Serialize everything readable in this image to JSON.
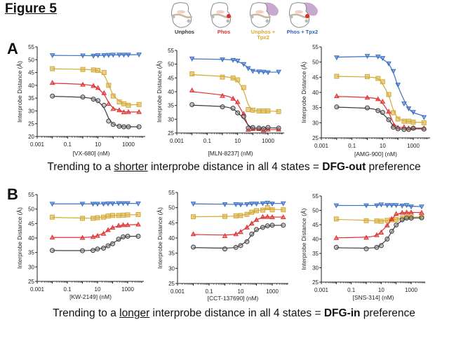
{
  "figure_title": "Figure 5",
  "panels": {
    "A": {
      "letter": "A",
      "caption_pre": "Trending to a ",
      "caption_u": "shorter",
      "caption_mid": " interprobe distance in all 4 states = ",
      "caption_b": "DFG-out",
      "caption_post": " preference"
    },
    "B": {
      "letter": "B",
      "caption_pre": "Trending to a ",
      "caption_u": "longer",
      "caption_mid": " interprobe distance in all 4 states = ",
      "caption_b": "DFG-in",
      "caption_post": " preference"
    }
  },
  "legend": [
    {
      "label": "Unphos",
      "label2": "",
      "color": "#333333",
      "icon": "kinase-structure-unphos"
    },
    {
      "label": "Phos",
      "label2": "",
      "color": "#e02b2b",
      "icon": "kinase-structure-phos"
    },
    {
      "label": "Unphos +",
      "label2": "Tpx2",
      "color": "#d9aa2e",
      "icon": "kinase-structure-unphos-tpx2"
    },
    {
      "label": "Phos + Tpx2",
      "label2": "",
      "color": "#2f5fb8",
      "icon": "kinase-structure-phos-tpx2"
    }
  ],
  "series_style": [
    {
      "state": "Phos + Tpx2",
      "color": "#3a6fc4",
      "marker": "triangle-down"
    },
    {
      "state": "Unphos + Tpx2",
      "color": "#d4a934",
      "marker": "square"
    },
    {
      "state": "Phos",
      "color": "#e03030",
      "marker": "triangle-up"
    },
    {
      "state": "Unphos",
      "color": "#3c3c3c",
      "marker": "circle"
    }
  ],
  "chart_data": [
    {
      "type": "scatter",
      "panel": "A",
      "xlabel": "[VX-680] (nM)",
      "ylabel": "Interprobe Distance (Å)",
      "xscale": "log",
      "xlim": [
        0.001,
        5000
      ],
      "xticks": [
        "0.001",
        "0.1",
        "10",
        "1000"
      ],
      "ylim": [
        20,
        55
      ],
      "yticks": [
        20,
        25,
        30,
        35,
        40,
        45,
        50,
        55
      ],
      "x": [
        0.01,
        1,
        5,
        10,
        25,
        50,
        100,
        250,
        500,
        1000,
        5000
      ],
      "series": [
        {
          "values": [
            51.7,
            51.6,
            51.5,
            51.7,
            51.7,
            51.8,
            51.9,
            51.9,
            51.9,
            51.9,
            52.0
          ]
        },
        {
          "values": [
            46.5,
            46.2,
            46.0,
            45.8,
            45.0,
            40.0,
            35.8,
            33.5,
            32.8,
            32.2,
            32.5
          ]
        },
        {
          "values": [
            41.0,
            40.3,
            39.8,
            39.0,
            37.0,
            32.8,
            30.8,
            30.3,
            29.5,
            29.6,
            29.6
          ]
        },
        {
          "values": [
            35.8,
            35.4,
            34.6,
            34.0,
            32.2,
            26.0,
            24.7,
            24.0,
            23.8,
            23.8,
            23.8
          ]
        }
      ]
    },
    {
      "type": "scatter",
      "panel": "A",
      "xlabel": "[MLN-8237] (nM)",
      "ylabel": "Interprobe Distance (Å)",
      "xscale": "log",
      "xlim": [
        0.001,
        5000
      ],
      "xticks": [
        "0.001",
        "0.1",
        "10",
        "1000"
      ],
      "ylim": [
        25,
        55
      ],
      "yticks": [
        25,
        30,
        35,
        40,
        45,
        50,
        55
      ],
      "x": [
        0.01,
        1,
        5,
        10,
        25,
        50,
        100,
        250,
        500,
        1000,
        5000
      ],
      "series": [
        {
          "values": [
            52.0,
            51.7,
            51.5,
            51.2,
            50.0,
            48.5,
            47.5,
            47.3,
            47.2,
            47.0,
            47.2
          ]
        },
        {
          "values": [
            46.5,
            45.3,
            45.0,
            44.3,
            41.5,
            33.5,
            33.3,
            33.0,
            33.0,
            33.0,
            32.8
          ]
        },
        {
          "values": [
            40.5,
            38.5,
            37.5,
            36.3,
            32.0,
            26.2,
            26.5,
            26.5,
            26.0,
            26.3,
            26.3
          ]
        },
        {
          "values": [
            35.3,
            34.5,
            34.0,
            32.3,
            31.0,
            26.8,
            27.0,
            26.8,
            26.6,
            27.0,
            26.8
          ]
        }
      ]
    },
    {
      "type": "scatter",
      "panel": "A",
      "xlabel": "[AMG-900] (nM)",
      "ylabel": "Interprobe Distance (Å)",
      "xscale": "log",
      "xlim": [
        0.001,
        5000
      ],
      "xticks": [
        "0.001",
        "0.1",
        "10",
        "1000"
      ],
      "ylim": [
        25,
        55
      ],
      "yticks": [
        25,
        30,
        35,
        40,
        45,
        50,
        55
      ],
      "x": [
        0.01,
        1,
        5,
        10,
        25,
        50,
        100,
        250,
        500,
        1000,
        5000
      ],
      "series": [
        {
          "values": [
            51.5,
            52.0,
            51.8,
            51.3,
            49.5,
            47.0,
            42.5,
            36.3,
            34.7,
            33.5,
            31.8
          ]
        },
        {
          "values": [
            45.3,
            45.2,
            44.6,
            43.5,
            39.3,
            33.3,
            31.2,
            30.5,
            30.5,
            30.2,
            30.0
          ]
        },
        {
          "values": [
            38.8,
            38.3,
            37.8,
            37.0,
            33.7,
            29.0,
            28.4,
            28.6,
            28.2,
            28.3,
            28.2
          ]
        },
        {
          "values": [
            35.2,
            34.9,
            34.0,
            33.4,
            31.0,
            28.5,
            28.0,
            27.8,
            27.8,
            28.2,
            27.9
          ]
        }
      ]
    },
    {
      "type": "scatter",
      "panel": "B",
      "xlabel": "[KW-2149] (nM)",
      "ylabel": "Interprobe Distance (Å)",
      "xscale": "log",
      "xlim": [
        0.001,
        5000
      ],
      "xticks": [
        "0.001",
        "0.1",
        "10",
        "1000"
      ],
      "ylim": [
        25,
        55
      ],
      "yticks": [
        25,
        30,
        35,
        40,
        45,
        50,
        55
      ],
      "x": [
        0.01,
        1,
        5,
        10,
        25,
        50,
        100,
        250,
        500,
        1000,
        5000
      ],
      "series": [
        {
          "values": [
            51.8,
            51.8,
            51.8,
            51.8,
            51.8,
            51.9,
            51.9,
            52.0,
            52.0,
            52.0,
            51.9
          ]
        },
        {
          "values": [
            47.2,
            46.8,
            46.8,
            47.0,
            47.2,
            47.6,
            47.8,
            47.8,
            47.9,
            48.0,
            48.1
          ]
        },
        {
          "values": [
            40.2,
            40.1,
            40.4,
            40.8,
            41.5,
            42.8,
            43.6,
            44.3,
            44.5,
            44.5,
            44.7
          ]
        },
        {
          "values": [
            35.7,
            35.6,
            35.7,
            36.2,
            36.5,
            37.3,
            38.0,
            39.6,
            40.4,
            40.6,
            40.6
          ]
        }
      ]
    },
    {
      "type": "scatter",
      "panel": "B",
      "xlabel": "[CCT-137690] (nM)",
      "ylabel": "Interprobe Distance (Å)",
      "xscale": "log",
      "xlim": [
        0.001,
        5000
      ],
      "xticks": [
        "0.001",
        "0.1",
        "10",
        "1000"
      ],
      "ylim": [
        25,
        55
      ],
      "yticks": [
        25,
        30,
        35,
        40,
        45,
        50,
        55
      ],
      "x": [
        0.01,
        1,
        5,
        10,
        25,
        50,
        100,
        250,
        500,
        1000,
        5000
      ],
      "series": [
        {
          "values": [
            51.3,
            51.1,
            51.1,
            51.0,
            51.1,
            51.3,
            51.3,
            51.4,
            51.6,
            51.3,
            51.4
          ]
        },
        {
          "values": [
            47.0,
            47.1,
            47.3,
            47.4,
            47.8,
            48.5,
            49.0,
            49.2,
            50.0,
            49.3,
            49.3
          ]
        },
        {
          "values": [
            41.3,
            40.7,
            41.3,
            42.0,
            43.5,
            44.8,
            46.0,
            47.0,
            47.0,
            46.9,
            46.9
          ]
        },
        {
          "values": [
            37.0,
            36.4,
            36.9,
            37.5,
            38.8,
            41.3,
            42.8,
            43.5,
            44.0,
            44.2,
            44.2
          ]
        }
      ]
    },
    {
      "type": "scatter",
      "panel": "B",
      "xlabel": "[SNS-314] (nM)",
      "ylabel": "Interprobe Distance (Å)",
      "xscale": "log",
      "xlim": [
        0.001,
        5000
      ],
      "xticks": [
        "0.001",
        "0.1",
        "10",
        "1000"
      ],
      "ylim": [
        25,
        55
      ],
      "yticks": [
        25,
        30,
        35,
        40,
        45,
        50,
        55
      ],
      "x": [
        0.01,
        1,
        5,
        10,
        25,
        50,
        100,
        250,
        500,
        1000,
        5000
      ],
      "series": [
        {
          "values": [
            51.7,
            51.7,
            51.7,
            52.0,
            51.8,
            51.8,
            51.8,
            51.6,
            51.8,
            51.3,
            51.3
          ]
        },
        {
          "values": [
            47.0,
            46.4,
            46.3,
            46.2,
            46.5,
            46.7,
            46.8,
            47.3,
            47.6,
            47.6,
            47.8
          ]
        },
        {
          "values": [
            40.4,
            40.5,
            41.4,
            42.3,
            44.8,
            47.0,
            48.8,
            49.2,
            49.3,
            49.3,
            49.2
          ]
        },
        {
          "values": [
            37.1,
            36.6,
            37.1,
            37.7,
            40.0,
            42.7,
            44.9,
            46.7,
            47.3,
            47.3,
            47.4
          ]
        }
      ]
    }
  ]
}
